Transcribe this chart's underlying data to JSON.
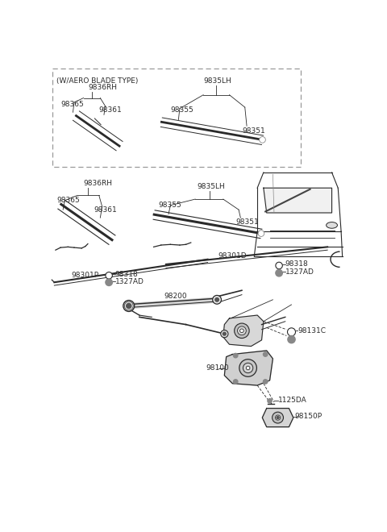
{
  "bg_color": "#ffffff",
  "line_color": "#2a2a2a",
  "gray_color": "#888888",
  "dark_gray": "#555555",
  "font_size": 6.5,
  "parts": {
    "dashed_box_label": "(W/AERO BLADE TYPE)",
    "rh_box_label": "9836RH",
    "rh_box_98365": "98365",
    "rh_box_98361": "98361",
    "lh_box_label": "9835LH",
    "lh_box_98355": "98355",
    "lh_box_98351": "98351",
    "main_rh_label": "9836RH",
    "main_rh_98365": "98365",
    "main_rh_98361": "98361",
    "main_lh_label": "9835LH",
    "main_lh_98355": "98355",
    "main_lh_98351": "98351",
    "p98301p": "98301P",
    "p98318_l": "98318",
    "p1327ad_l": "1327AD",
    "p98301d": "98301D",
    "p98318_r": "98318",
    "p1327ad_r": "1327AD",
    "p98200": "98200",
    "p98131c": "98131C",
    "p98100": "98100",
    "p1125da": "1125DA",
    "p98150p": "98150P"
  }
}
